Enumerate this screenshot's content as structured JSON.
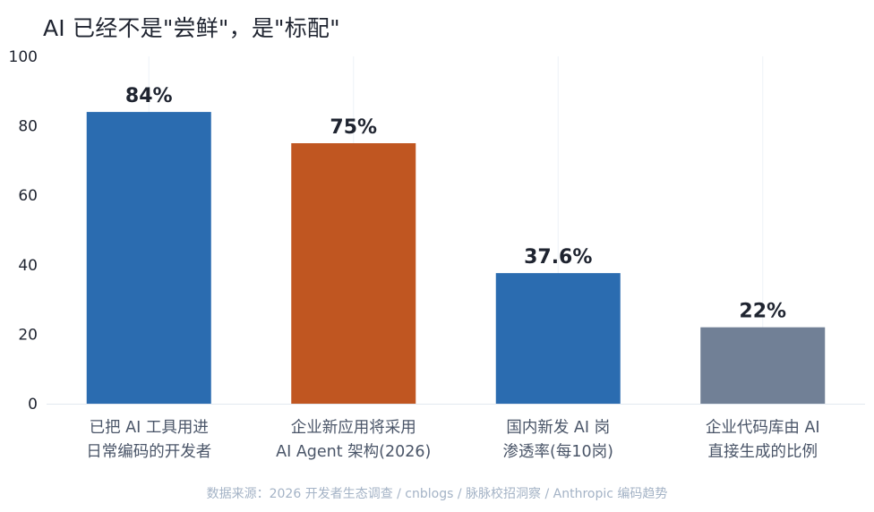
{
  "title": "AI 已经不是\"尝鲜\"，是\"标配\"",
  "source_note": "数据来源：2026 开发者生态调查 / cnblogs / 脉脉校招洞察 / Anthropic 编码趋势",
  "colors": {
    "primary_blue": "#2b6cb0",
    "accent_orange": "#c05621",
    "muted_gray": "#718096",
    "value_label": "#1f2430",
    "axis_text": "#1f2430",
    "category_text": "#4a5568",
    "gridline": "#edf2f7"
  },
  "chart_data": {
    "type": "bar",
    "categories": [
      [
        "已把 AI 工具用进",
        "日常编码的开发者"
      ],
      [
        "企业新应用将采用",
        "AI Agent 架构(2026)"
      ],
      [
        "国内新发 AI 岗",
        "渗透率(每10岗)"
      ],
      [
        "企业代码库由 AI",
        "直接生成的比例"
      ]
    ],
    "values": [
      84,
      75,
      37.6,
      22
    ],
    "value_labels": [
      "84%",
      "75%",
      "37.6%",
      "22%"
    ],
    "bar_colors": [
      "#2b6cb0",
      "#c05621",
      "#2b6cb0",
      "#718096"
    ],
    "ylim": [
      0,
      100
    ],
    "yticks": [
      0,
      20,
      40,
      60,
      80,
      100
    ],
    "grid": "vertical"
  }
}
